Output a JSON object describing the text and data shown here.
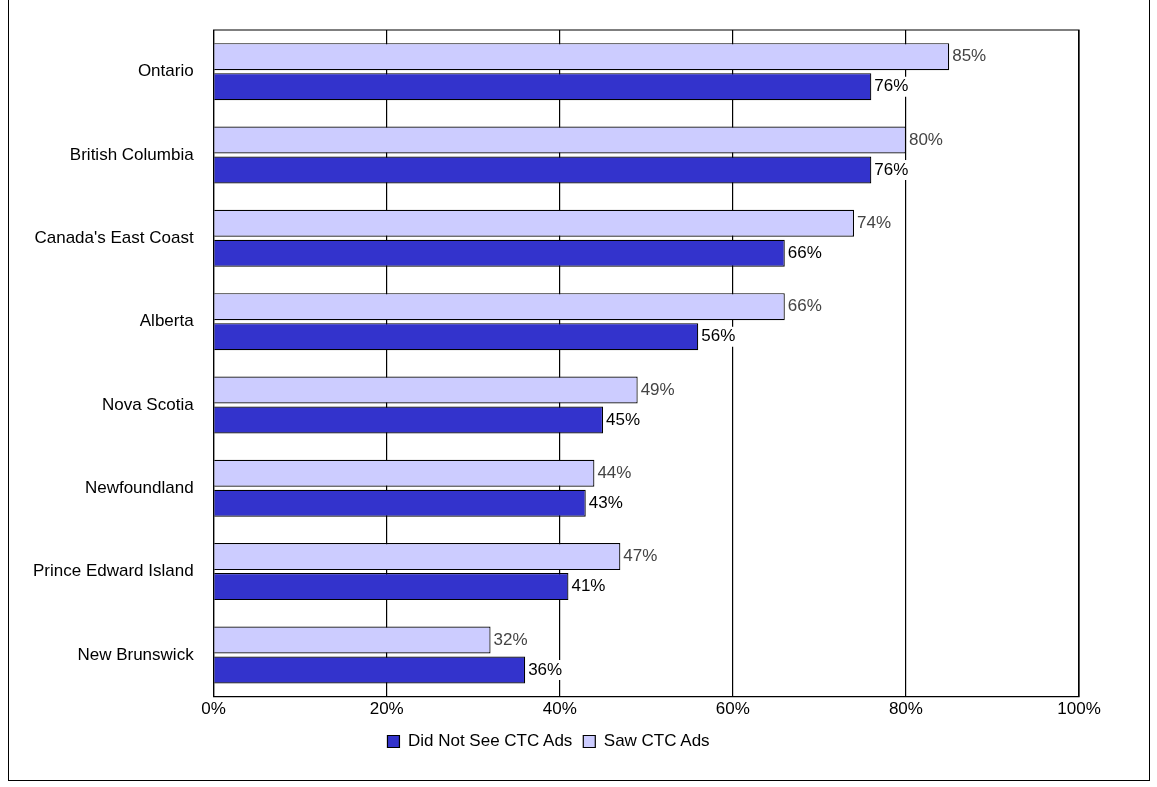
{
  "chart_data": {
    "type": "bar",
    "orientation": "horizontal",
    "categories": [
      "Ontario",
      "British Columbia",
      "Canada's East Coast",
      "Alberta",
      "Nova Scotia",
      "Newfoundland",
      "Prince Edward Island",
      "New Brunswick"
    ],
    "series": [
      {
        "name": "Did Not See CTC Ads",
        "color": "#3333cc",
        "values": [
          76,
          76,
          66,
          56,
          45,
          43,
          41,
          36
        ],
        "value_labels": [
          "76%",
          "76%",
          "66%",
          "56%",
          "45%",
          "43%",
          "41%",
          "36%"
        ]
      },
      {
        "name": "Saw CTC Ads",
        "color": "#ccccff",
        "values": [
          85,
          80,
          74,
          66,
          49,
          44,
          47,
          32
        ],
        "value_labels": [
          "85%",
          "80%",
          "74%",
          "66%",
          "49%",
          "44%",
          "47%",
          "32%"
        ]
      }
    ],
    "xlim": [
      0,
      100
    ],
    "xticks": [
      {
        "value": 0,
        "label": "0%"
      },
      {
        "value": 20,
        "label": "20%"
      },
      {
        "value": 40,
        "label": "40%"
      },
      {
        "value": 60,
        "label": "60%"
      },
      {
        "value": 80,
        "label": "80%"
      },
      {
        "value": 100,
        "label": "100%"
      }
    ],
    "grid": "x",
    "legend": "bottom"
  }
}
